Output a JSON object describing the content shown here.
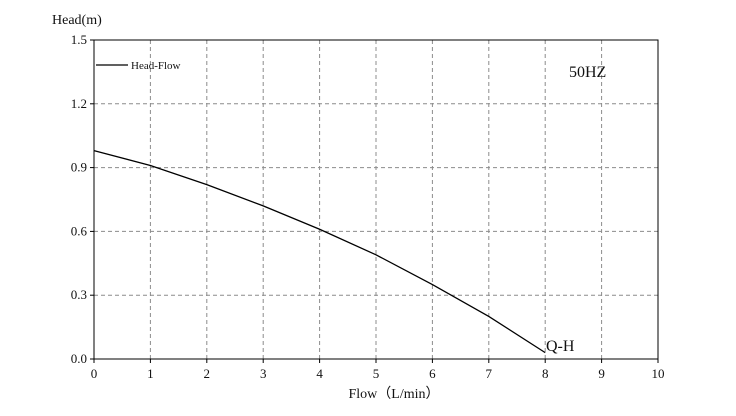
{
  "chart_data": {
    "type": "line",
    "ylabel": "Head(m)",
    "xlabel": "Flow（L/min）",
    "xlim": [
      0,
      10
    ],
    "ylim": [
      0,
      1.5
    ],
    "x_ticks": [
      "0",
      "1",
      "2",
      "3",
      "4",
      "5",
      "6",
      "7",
      "8",
      "9",
      "10"
    ],
    "y_ticks": [
      "0.0",
      "0.3",
      "0.6",
      "0.9",
      "1.2",
      "1.5"
    ],
    "grid": true,
    "legend": {
      "placement": "top-left",
      "entries": [
        "Head-Flow"
      ]
    },
    "frequency_label": "50HZ",
    "curve_label": "Q-H",
    "series": [
      {
        "name": "Head-Flow",
        "x": [
          0,
          1,
          2,
          3,
          4,
          5,
          6,
          7,
          8
        ],
        "y": [
          0.98,
          0.91,
          0.82,
          0.72,
          0.61,
          0.49,
          0.35,
          0.2,
          0.03
        ]
      }
    ]
  }
}
